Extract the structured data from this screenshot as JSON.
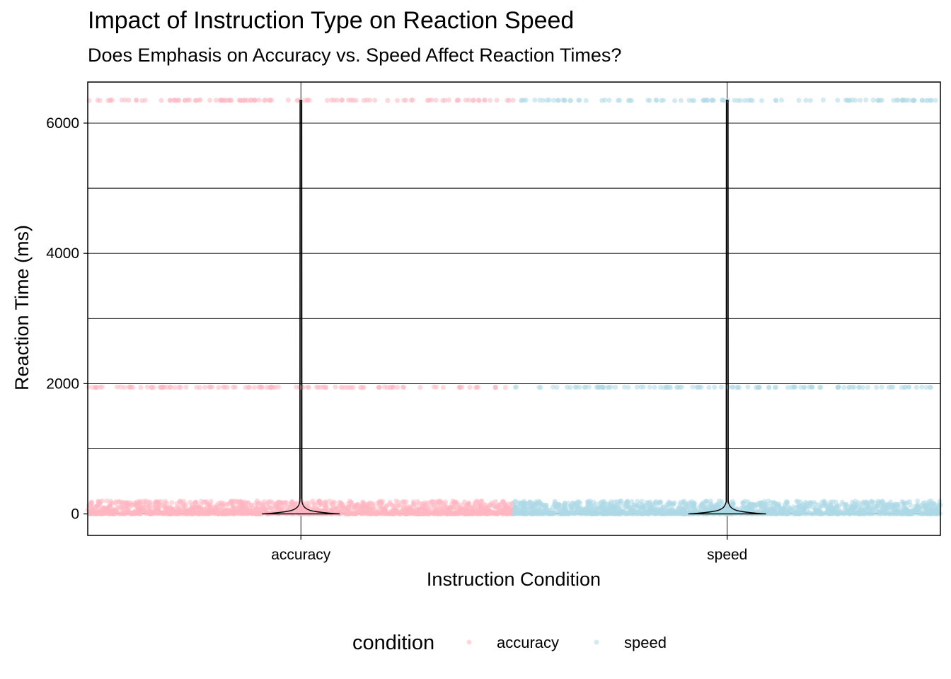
{
  "chart_data": {
    "type": "scatter",
    "subtype": "jittered points with violin overlay",
    "title": "Impact of Instruction Type on Reaction Speed",
    "subtitle": "Does Emphasis on Accuracy vs. Speed Affect Reaction Times?",
    "xlabel": "Instruction Condition",
    "ylabel": "Reaction Time (ms)",
    "categories": [
      "accuracy",
      "speed"
    ],
    "ylim": [
      -330,
      6630
    ],
    "yticks": [
      0,
      2000,
      4000,
      6000
    ],
    "grid": true,
    "legend": {
      "title": "condition",
      "position": "bottom",
      "entries": [
        "accuracy",
        "speed"
      ]
    },
    "series": [
      {
        "name": "accuracy",
        "color": "#FFB6C1",
        "clusters": [
          {
            "rt": 6350,
            "approx_points": 110
          },
          {
            "rt": 1945,
            "approx_points": 110
          },
          {
            "rt_range": [
              0,
              200
            ],
            "approx_points": 1500
          }
        ],
        "violin": {
          "min": 0,
          "max": 6350,
          "mode": 30
        }
      },
      {
        "name": "speed",
        "color": "#ADD8E6",
        "clusters": [
          {
            "rt": 6350,
            "approx_points": 100
          },
          {
            "rt": 1945,
            "approx_points": 110
          },
          {
            "rt_range": [
              0,
              200
            ],
            "approx_points": 1500
          }
        ],
        "violin": {
          "min": 0,
          "max": 6350,
          "mode": 30
        }
      }
    ]
  }
}
